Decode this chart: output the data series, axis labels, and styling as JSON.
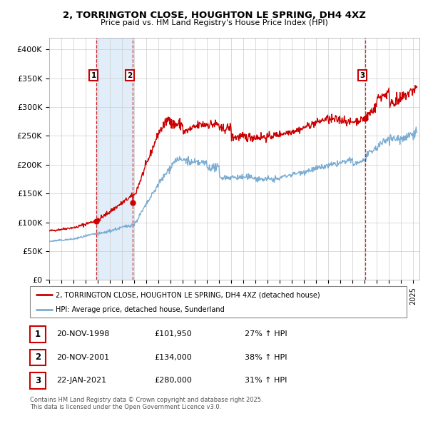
{
  "title": "2, TORRINGTON CLOSE, HOUGHTON LE SPRING, DH4 4XZ",
  "subtitle": "Price paid vs. HM Land Registry's House Price Index (HPI)",
  "ylim": [
    0,
    420000
  ],
  "xlim_start": 1995.0,
  "xlim_end": 2025.5,
  "yticks": [
    0,
    50000,
    100000,
    150000,
    200000,
    250000,
    300000,
    350000,
    400000
  ],
  "ytick_labels": [
    "£0",
    "£50K",
    "£100K",
    "£150K",
    "£200K",
    "£250K",
    "£300K",
    "£350K",
    "£400K"
  ],
  "background_color": "#ffffff",
  "plot_bg_color": "#ffffff",
  "grid_color": "#cccccc",
  "red_line_color": "#cc0000",
  "blue_line_color": "#7aadd4",
  "transactions": [
    {
      "num": 1,
      "date": "20-NOV-1998",
      "date_x": 1998.89,
      "price": 101950,
      "pct": "27%",
      "dir": "↑"
    },
    {
      "num": 2,
      "date": "20-NOV-2001",
      "date_x": 2001.89,
      "price": 134000,
      "pct": "38%",
      "dir": "↑"
    },
    {
      "num": 3,
      "date": "22-JAN-2021",
      "date_x": 2021.06,
      "price": 280000,
      "pct": "31%",
      "dir": "↑"
    }
  ],
  "legend_line1": "2, TORRINGTON CLOSE, HOUGHTON LE SPRING, DH4 4XZ (detached house)",
  "legend_line2": "HPI: Average price, detached house, Sunderland",
  "footer": "Contains HM Land Registry data © Crown copyright and database right 2025.\nThis data is licensed under the Open Government Licence v3.0.",
  "shaded_region_start": 1998.89,
  "shaded_region_end": 2001.89
}
